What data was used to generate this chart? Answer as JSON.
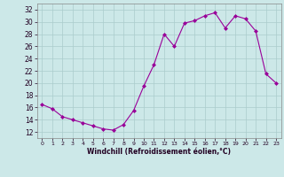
{
  "hours": [
    0,
    1,
    2,
    3,
    4,
    5,
    6,
    7,
    8,
    9,
    10,
    11,
    12,
    13,
    14,
    15,
    16,
    17,
    18,
    19,
    20,
    21,
    22,
    23
  ],
  "values": [
    16.5,
    15.8,
    14.5,
    14.0,
    13.5,
    13.0,
    12.5,
    12.3,
    13.2,
    15.5,
    19.5,
    23.0,
    28.0,
    26.0,
    29.8,
    30.2,
    31.0,
    31.5,
    29.0,
    31.0,
    30.5,
    28.5,
    21.5,
    20.0
  ],
  "line_color": "#990099",
  "marker": "D",
  "marker_size": 2,
  "bg_color": "#cce8e8",
  "grid_color": "#aacccc",
  "xlabel": "Windchill (Refroidissement éolien,°C)",
  "ylim": [
    11,
    33
  ],
  "xlim": [
    -0.5,
    23.5
  ],
  "yticks": [
    12,
    14,
    16,
    18,
    20,
    22,
    24,
    26,
    28,
    30,
    32
  ],
  "xticks": [
    0,
    1,
    2,
    3,
    4,
    5,
    6,
    7,
    8,
    9,
    10,
    11,
    12,
    13,
    14,
    15,
    16,
    17,
    18,
    19,
    20,
    21,
    22,
    23
  ]
}
